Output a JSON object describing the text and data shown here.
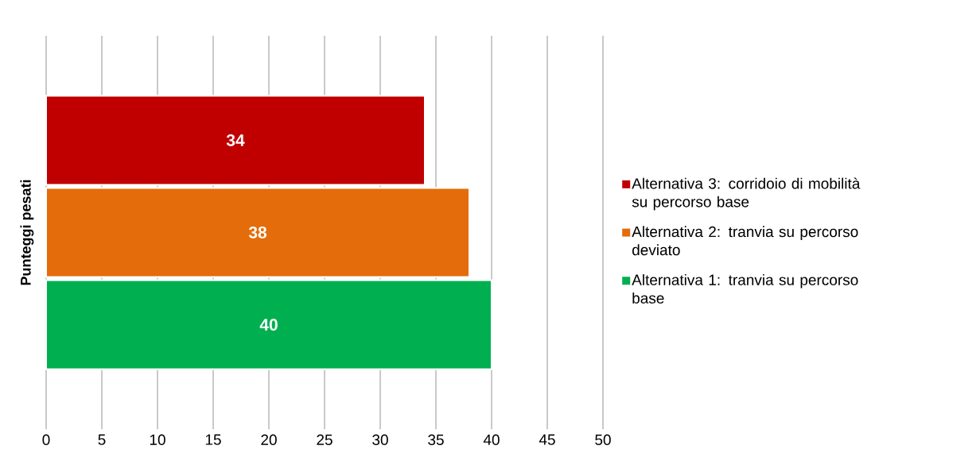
{
  "chart_data": {
    "type": "bar",
    "orientation": "horizontal",
    "ylabel": "Punteggi pesati",
    "categories": [
      null
    ],
    "series": [
      {
        "name": "Alternativa 1: tranvia su percorso base",
        "color": "#00b050",
        "values": [
          40
        ]
      },
      {
        "name": "Alternativa 2: tranvia su percorso deviato",
        "color": "#e46c0a",
        "values": [
          38
        ]
      },
      {
        "name": "Alternativa 3: corridoio di mobilità su percorso base",
        "color": "#c00000",
        "values": [
          34
        ]
      }
    ],
    "xlim": [
      0,
      50
    ],
    "xticks": [
      0,
      5,
      10,
      15,
      20,
      25,
      30,
      35,
      40,
      45,
      50
    ],
    "grid": "x",
    "legend": "right",
    "data_labels": true
  }
}
